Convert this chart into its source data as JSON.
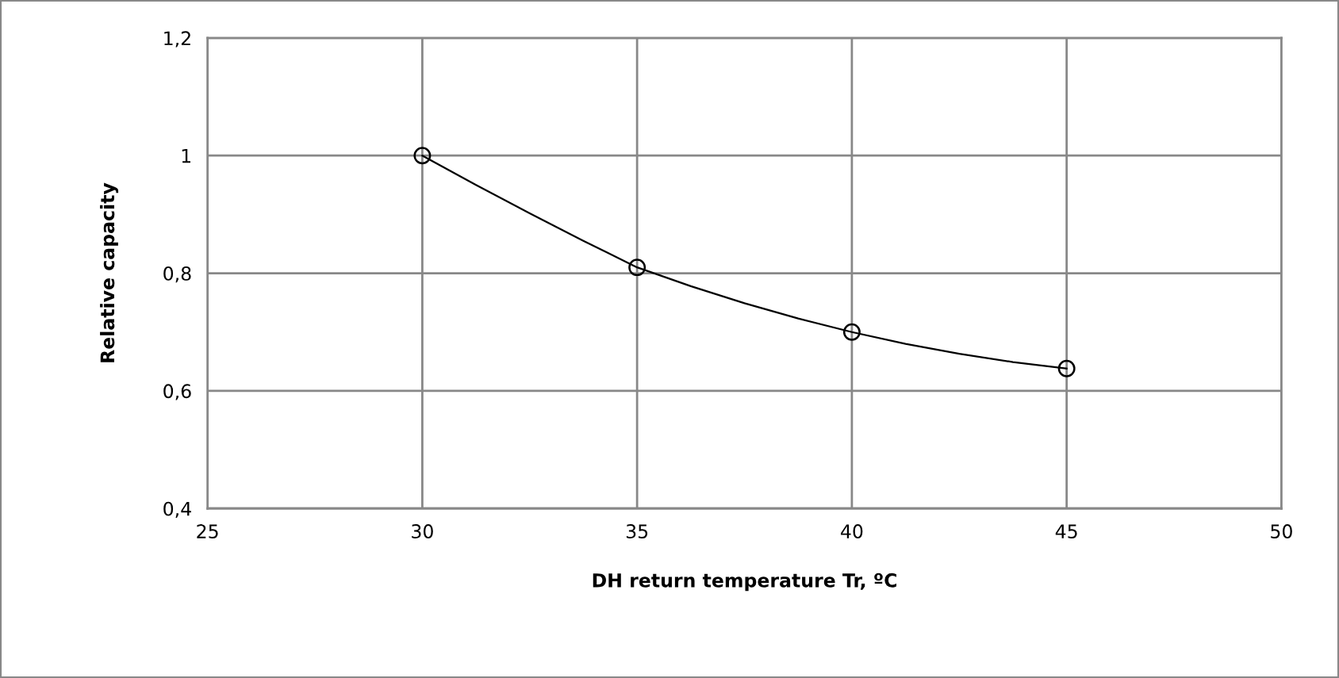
{
  "chart_data": {
    "type": "scatter",
    "xlabel": "DH return temperature Tr, ºC",
    "ylabel": "Relative capacity",
    "series": [
      {
        "type": "line",
        "marker": "none",
        "color": "#000000",
        "x": [
          30,
          31.25,
          32.5,
          33.75,
          35,
          36.25,
          37.5,
          38.75,
          40,
          41.25,
          42.5,
          43.75,
          45
        ],
        "values": [
          1.0,
          0.95,
          0.902,
          0.855,
          0.81,
          0.778,
          0.749,
          0.723,
          0.7,
          0.68,
          0.663,
          0.649,
          0.638
        ]
      },
      {
        "marker": "circle",
        "color": "#000000",
        "x": [
          30,
          35,
          40,
          45
        ],
        "values": [
          1.0,
          0.81,
          0.7,
          0.638
        ]
      }
    ],
    "line_style": "solid",
    "grid": true,
    "xlim": [
      25,
      50
    ],
    "xticks": [
      25,
      30,
      35,
      40,
      45,
      50
    ],
    "ylim": [
      0.4,
      1.2
    ],
    "yticks": [
      {
        "value": 0.4,
        "label": "0,4"
      },
      {
        "value": 0.6,
        "label": "0,6"
      },
      {
        "value": 0.8,
        "label": "0,8"
      },
      {
        "value": 1,
        "label": "1"
      },
      {
        "value": 1.2,
        "label": "1,2"
      }
    ]
  }
}
